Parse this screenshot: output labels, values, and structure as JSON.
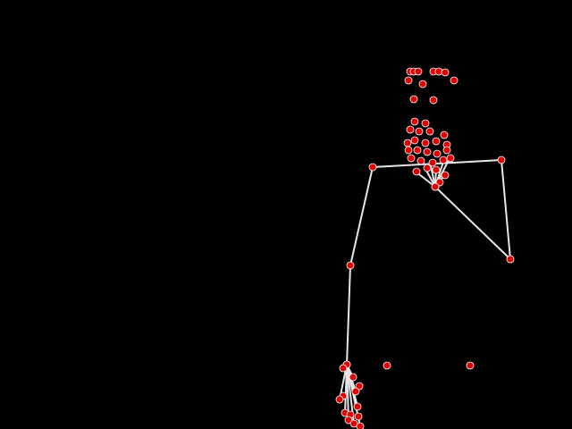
{
  "scene": {
    "description_colors": {
      "background": "#000000",
      "bone": "#e6e6e6",
      "joint_fill": "#e00000",
      "joint_stroke": "#ffffff"
    },
    "subject": "pose-skeleton-overlay"
  }
}
